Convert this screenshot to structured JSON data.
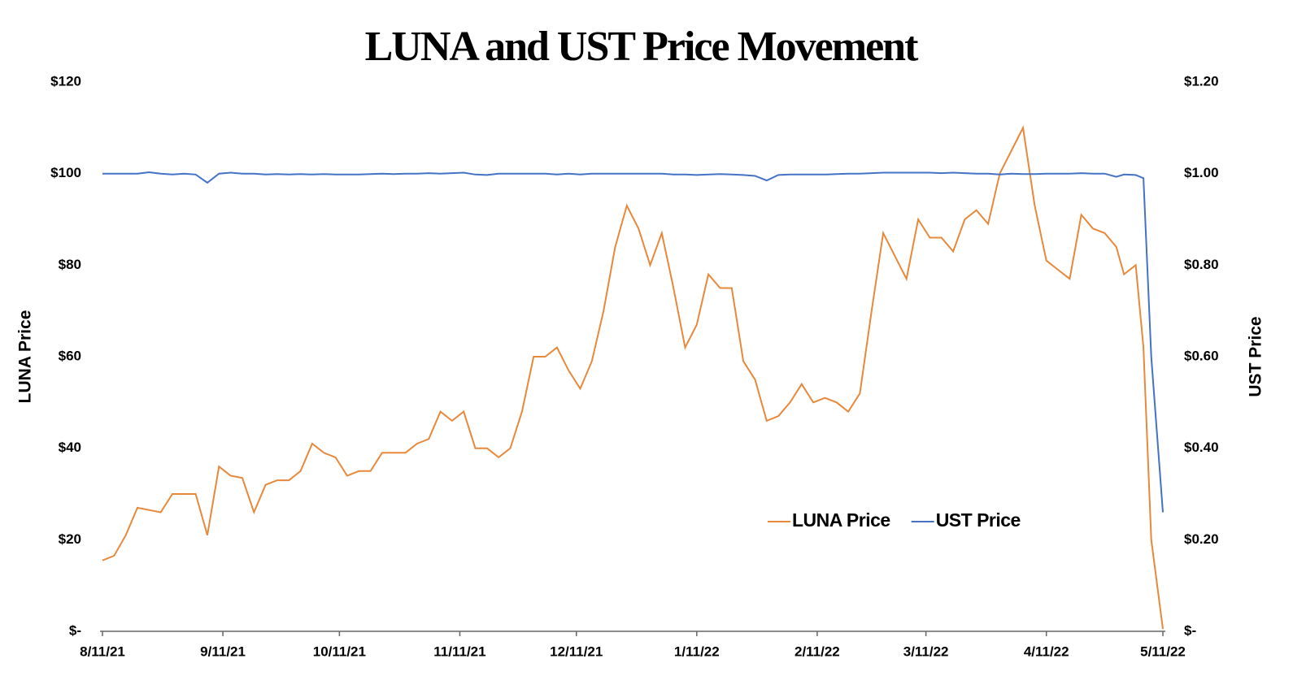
{
  "chart_data": {
    "type": "line",
    "title": "LUNA and UST Price Movement",
    "y_label": "LUNA Price",
    "y2_label": "UST Price",
    "legend": "lower right",
    "x": [
      "8/11/21",
      "8/14/21",
      "8/17/21",
      "8/20/21",
      "8/23/21",
      "8/26/21",
      "8/29/21",
      "9/1/21",
      "9/4/21",
      "9/7/21",
      "9/10/21",
      "9/13/21",
      "9/16/21",
      "9/19/21",
      "9/22/21",
      "9/25/21",
      "9/28/21",
      "10/1/21",
      "10/4/21",
      "10/7/21",
      "10/10/21",
      "10/13/21",
      "10/16/21",
      "10/19/21",
      "10/22/21",
      "10/25/21",
      "10/28/21",
      "10/31/21",
      "11/3/21",
      "11/6/21",
      "11/9/21",
      "11/12/21",
      "11/15/21",
      "11/18/21",
      "11/21/21",
      "11/24/21",
      "11/27/21",
      "11/30/21",
      "12/3/21",
      "12/6/21",
      "12/9/21",
      "12/12/21",
      "12/15/21",
      "12/18/21",
      "12/21/21",
      "12/24/21",
      "12/27/21",
      "12/30/21",
      "1/2/22",
      "1/5/22",
      "1/8/22",
      "1/11/22",
      "1/14/22",
      "1/17/22",
      "1/20/22",
      "1/23/22",
      "1/26/22",
      "1/29/22",
      "2/1/22",
      "2/4/22",
      "2/7/22",
      "2/10/22",
      "2/13/22",
      "2/16/22",
      "2/19/22",
      "2/22/22",
      "2/25/22",
      "2/28/22",
      "3/3/22",
      "3/6/22",
      "3/9/22",
      "3/12/22",
      "3/15/22",
      "3/18/22",
      "3/21/22",
      "3/24/22",
      "3/27/22",
      "3/30/22",
      "4/2/22",
      "4/5/22",
      "4/8/22",
      "4/11/22",
      "4/14/22",
      "4/17/22",
      "4/20/22",
      "4/23/22",
      "4/26/22",
      "4/29/22",
      "5/1/22",
      "5/4/22",
      "5/6/22",
      "5/8/22",
      "5/11/22"
    ],
    "series": [
      {
        "name": "LUNA Price",
        "color": "#e8883a",
        "axis": "y",
        "values": [
          15.5,
          16.5,
          21,
          27,
          26.5,
          26,
          30,
          30,
          30,
          21,
          36,
          34,
          33.5,
          26,
          32,
          33,
          33,
          35,
          41,
          39,
          38,
          34,
          35,
          35,
          39,
          39,
          39,
          41,
          42,
          48,
          46,
          48,
          40,
          40,
          38,
          40,
          48,
          60,
          60,
          62,
          57,
          53,
          59,
          70,
          84,
          93,
          88,
          80,
          87,
          75,
          62,
          67,
          78,
          75,
          75,
          59,
          55,
          46,
          47,
          50,
          54,
          50,
          51,
          50,
          48,
          52,
          70,
          87,
          82,
          77,
          90,
          86,
          86,
          83,
          90,
          92,
          89,
          100,
          105,
          110,
          93,
          81,
          79,
          77,
          91,
          88,
          87,
          84,
          78,
          80,
          62,
          20,
          0.5
        ]
      },
      {
        "name": "UST Price",
        "color": "#4472c4",
        "axis": "y2",
        "values": [
          1.0,
          1.0,
          1.0,
          1.0,
          1.003,
          1.0,
          0.998,
          1.0,
          0.998,
          0.98,
          1.0,
          1.002,
          1.0,
          1.0,
          0.998,
          0.999,
          0.998,
          0.999,
          0.998,
          0.999,
          0.998,
          0.998,
          0.998,
          0.999,
          1.0,
          0.999,
          1.0,
          1.0,
          1.001,
          1.0,
          1.001,
          1.002,
          0.998,
          0.997,
          1.0,
          1.0,
          1.0,
          1.0,
          1.0,
          0.998,
          1.0,
          0.998,
          1.0,
          1.0,
          1.0,
          1.0,
          1.0,
          1.0,
          1.0,
          0.998,
          0.998,
          0.997,
          0.998,
          0.999,
          0.998,
          0.997,
          0.995,
          0.985,
          0.997,
          0.998,
          0.998,
          0.998,
          0.998,
          0.999,
          1.0,
          1.0,
          1.001,
          1.002,
          1.002,
          1.002,
          1.002,
          1.002,
          1.001,
          1.002,
          1.001,
          1.0,
          1.0,
          0.998,
          1.0,
          0.999,
          0.999,
          1.0,
          1.0,
          1.0,
          1.001,
          1.0,
          1.0,
          0.993,
          0.998,
          0.997,
          0.99,
          0.6,
          0.26
        ]
      }
    ],
    "xlim": [
      "8/11/21",
      "5/11/22"
    ],
    "xticks": [
      "8/11/21",
      "9/11/21",
      "10/11/21",
      "11/11/21",
      "12/11/21",
      "1/11/22",
      "2/11/22",
      "3/11/22",
      "4/11/22",
      "5/11/22"
    ],
    "ylim": [
      0,
      120
    ],
    "yticks": [
      {
        "value": 0,
        "label": "$-"
      },
      {
        "value": 20,
        "label": "$20"
      },
      {
        "value": 40,
        "label": "$40"
      },
      {
        "value": 60,
        "label": "$60"
      },
      {
        "value": 80,
        "label": "$80"
      },
      {
        "value": 100,
        "label": "$100"
      },
      {
        "value": 120,
        "label": "$120"
      }
    ],
    "y2lim": [
      0,
      1.2
    ],
    "y2ticks": [
      {
        "value": 0,
        "label": "$-"
      },
      {
        "value": 0.2,
        "label": "$0.20"
      },
      {
        "value": 0.4,
        "label": "$0.40"
      },
      {
        "value": 0.6,
        "label": "$0.60"
      },
      {
        "value": 0.8,
        "label": "$0.80"
      },
      {
        "value": 1.0,
        "label": "$1.00"
      },
      {
        "value": 1.2,
        "label": "$1.20"
      }
    ],
    "grid": false
  }
}
